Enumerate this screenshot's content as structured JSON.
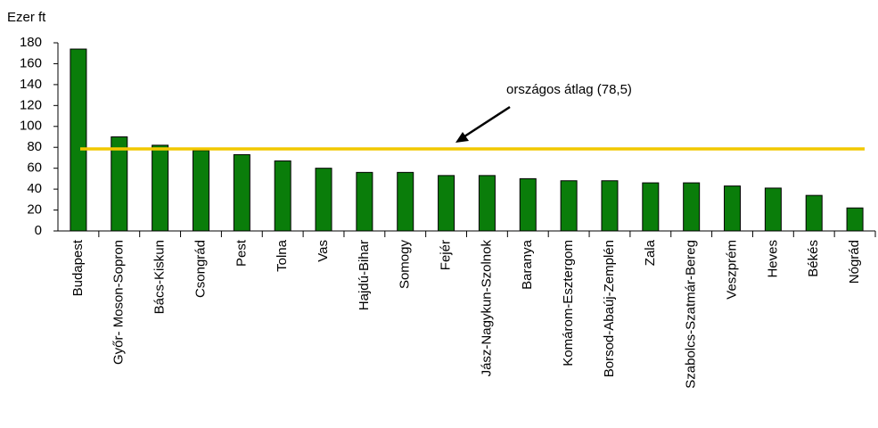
{
  "chart_data": {
    "type": "bar",
    "y_label": "Ezer ft",
    "categories": [
      "Budapest",
      "Győr- Moson-Sopron",
      "Bács-Kiskun",
      "Csongrád",
      "Pest",
      "Tolna",
      "Vas",
      "Hajdú-Bihar",
      "Somogy",
      "Fejér",
      "Jász-Nagykun-Szolnok",
      "Baranya",
      "Komárom-Esztergom",
      "Borsod-Abaúj-Zemplén",
      "Zala",
      "Szabolcs-Szatmár-Bereg",
      "Veszprém",
      "Heves",
      "Békés",
      "Nógrád"
    ],
    "values": [
      174,
      90,
      82,
      77,
      73,
      67,
      60,
      56,
      56,
      53,
      53,
      50,
      48,
      48,
      46,
      46,
      43,
      41,
      34,
      22
    ],
    "color": "#0a7d0a",
    "ylim": [
      0,
      180
    ],
    "yticks": [
      0,
      20,
      40,
      60,
      80,
      100,
      120,
      140,
      160,
      180
    ],
    "grid": false,
    "reference_line": {
      "value": 78.5,
      "label": "országos átlag (78,5)",
      "color": "#f2c800"
    }
  }
}
